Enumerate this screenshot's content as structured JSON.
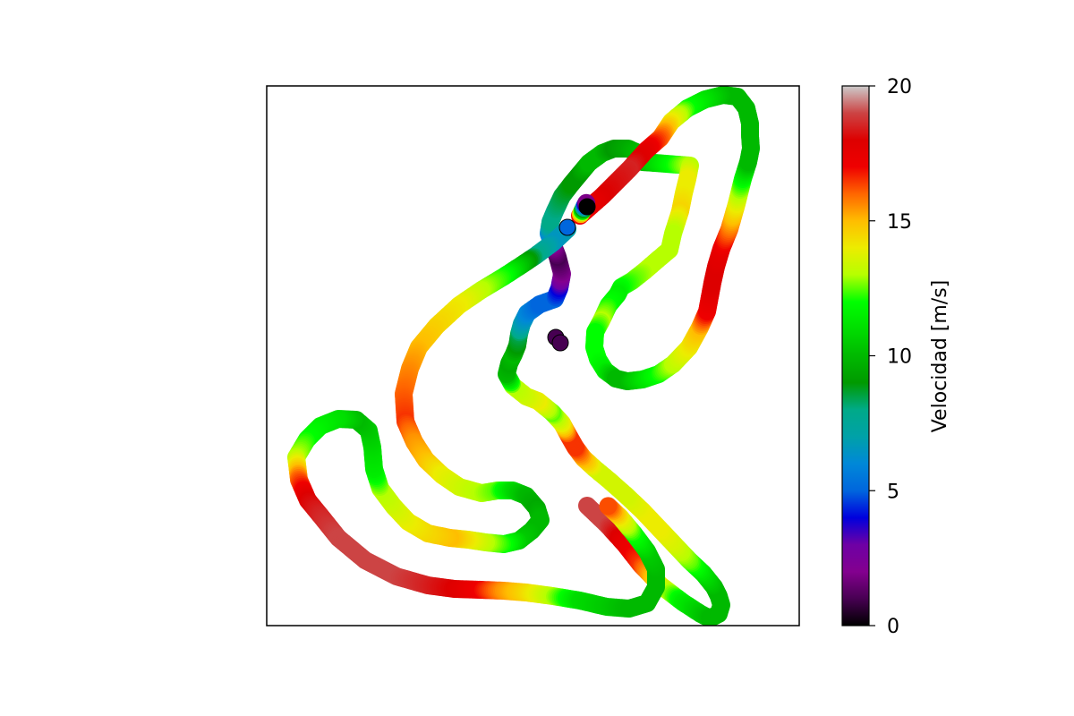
{
  "chart_data": {
    "type": "scatter",
    "title": "",
    "xlabel": "",
    "ylabel": "",
    "x_ticks_visible": false,
    "y_ticks_visible": false,
    "grid": false,
    "legend": "none",
    "colormap": "nipy_spectral",
    "colormap_stops": [
      {
        "v": 0.0,
        "c": "#000000"
      },
      {
        "v": 0.05,
        "c": "#470052"
      },
      {
        "v": 0.1,
        "c": "#83008f"
      },
      {
        "v": 0.15,
        "c": "#6e00a5"
      },
      {
        "v": 0.2,
        "c": "#0000dd"
      },
      {
        "v": 0.25,
        "c": "#0066dd"
      },
      {
        "v": 0.3,
        "c": "#0088d8"
      },
      {
        "v": 0.35,
        "c": "#00a1a8"
      },
      {
        "v": 0.4,
        "c": "#00aa88"
      },
      {
        "v": 0.45,
        "c": "#009a00"
      },
      {
        "v": 0.5,
        "c": "#00b900"
      },
      {
        "v": 0.55,
        "c": "#00dd00"
      },
      {
        "v": 0.6,
        "c": "#00ff00"
      },
      {
        "v": 0.65,
        "c": "#b6ff00"
      },
      {
        "v": 0.7,
        "c": "#ecec00"
      },
      {
        "v": 0.75,
        "c": "#ffbd00"
      },
      {
        "v": 0.8,
        "c": "#ff6600"
      },
      {
        "v": 0.85,
        "c": "#ef0000"
      },
      {
        "v": 0.9,
        "c": "#dd0000"
      },
      {
        "v": 0.95,
        "c": "#cc4444"
      },
      {
        "v": 1.0,
        "c": "#cccccc"
      }
    ],
    "colorbar": {
      "label": "Velocidad [m/s]",
      "range": [
        0,
        20
      ],
      "ticks": [
        "0",
        "5",
        "10",
        "15",
        "20"
      ]
    },
    "xlim": [
      0,
      595
    ],
    "ylim": [
      0,
      603
    ],
    "series": [
      {
        "points": [
          [
            358,
            469,
            19
          ],
          [
            380,
            490,
            19
          ],
          [
            400,
            512,
            17.5
          ],
          [
            418,
            535,
            16.5
          ],
          [
            440,
            558,
            14
          ],
          [
            465,
            577,
            11.5
          ],
          [
            485,
            590,
            10.5
          ],
          [
            495,
            595,
            10
          ],
          [
            505,
            590,
            10
          ],
          [
            508,
            580,
            10
          ],
          [
            505,
            570,
            10
          ],
          [
            500,
            560,
            10
          ],
          [
            488,
            545,
            11
          ],
          [
            472,
            530,
            12.5
          ],
          [
            455,
            512,
            13.5
          ],
          [
            438,
            494,
            14
          ],
          [
            420,
            475,
            14
          ],
          [
            402,
            458,
            13.5
          ],
          [
            384,
            442,
            13.5
          ],
          [
            366,
            427,
            13.5
          ],
          [
            354,
            416,
            15
          ],
          [
            345,
            404,
            16.5
          ],
          [
            337,
            390,
            16.5
          ],
          [
            330,
            377,
            14
          ],
          [
            319,
            365,
            12.5
          ],
          [
            303,
            352,
            14
          ],
          [
            290,
            347,
            13.5
          ],
          [
            275,
            335,
            13
          ],
          [
            268,
            322,
            10
          ],
          [
            271,
            310,
            9.5
          ],
          [
            276,
            300,
            10
          ],
          [
            280,
            290,
            9
          ],
          [
            282,
            277,
            8.5
          ],
          [
            285,
            266,
            7
          ],
          [
            291,
            254,
            6
          ],
          [
            305,
            244,
            5
          ],
          [
            322,
            238,
            5
          ],
          [
            327,
            226,
            4
          ],
          [
            330,
            210,
            2
          ],
          [
            325,
            191,
            1
          ],
          [
            320,
            178,
            2
          ],
          [
            315,
            165,
            6
          ],
          [
            317,
            152,
            8
          ],
          [
            322,
            140,
            8
          ],
          [
            330,
            123,
            8.5
          ],
          [
            340,
            110,
            9
          ],
          [
            350,
            98,
            9
          ],
          [
            360,
            86,
            10
          ],
          [
            375,
            75,
            10
          ],
          [
            388,
            70,
            9
          ],
          [
            404,
            70,
            9.5
          ],
          [
            415,
            75,
            10
          ],
          [
            420,
            85,
            10
          ],
          [
            473,
            89,
            13
          ],
          [
            470,
            104,
            14
          ],
          [
            466,
            120,
            14
          ],
          [
            462,
            140,
            14.5
          ],
          [
            454,
            165,
            13
          ],
          [
            450,
            183,
            13
          ],
          [
            437,
            194,
            13
          ],
          [
            422,
            207,
            13
          ],
          [
            408,
            218,
            12.5
          ],
          [
            396,
            225,
            12
          ],
          [
            392,
            233,
            11.5
          ],
          [
            382,
            245,
            12
          ],
          [
            374,
            262,
            13
          ],
          [
            367,
            275,
            12
          ],
          [
            366,
            292,
            12
          ],
          [
            370,
            305,
            12
          ],
          [
            378,
            318,
            11.5
          ],
          [
            390,
            327,
            10
          ],
          [
            403,
            330,
            10
          ],
          [
            420,
            328,
            11
          ],
          [
            438,
            322,
            12
          ],
          [
            454,
            311,
            13
          ],
          [
            472,
            292,
            14
          ],
          [
            484,
            270,
            15
          ],
          [
            492,
            252,
            17
          ],
          [
            495,
            236,
            17.5
          ],
          [
            498,
            220,
            18
          ],
          [
            502,
            202,
            18
          ],
          [
            508,
            182,
            17.5
          ],
          [
            517,
            160,
            16
          ],
          [
            525,
            132,
            14
          ],
          [
            532,
            104,
            12
          ],
          [
            538,
            85,
            10
          ],
          [
            541,
            70,
            10
          ],
          [
            540,
            55,
            10
          ],
          [
            540,
            42,
            10
          ],
          [
            536,
            25,
            10
          ],
          [
            526,
            12,
            10
          ],
          [
            510,
            10,
            10
          ],
          [
            490,
            15,
            11
          ],
          [
            470,
            25,
            12
          ],
          [
            452,
            40,
            14
          ],
          [
            440,
            58,
            16
          ],
          [
            424,
            72,
            17.5
          ],
          [
            405,
            93,
            18.5
          ],
          [
            375,
            123,
            18
          ],
          [
            350,
            145,
            17
          ],
          [
            358,
            129,
            0
          ]
        ]
      },
      {
        "points": [
          [
            336,
            160,
            7
          ],
          [
            320,
            175,
            6.5
          ],
          [
            300,
            190,
            8
          ],
          [
            285,
            200,
            10
          ],
          [
            265,
            213,
            12
          ],
          [
            240,
            228,
            13
          ],
          [
            215,
            245,
            14
          ],
          [
            190,
            268,
            14.5
          ],
          [
            170,
            292,
            15
          ],
          [
            160,
            316,
            15.5
          ],
          [
            153,
            344,
            16
          ],
          [
            155,
            375,
            16.5
          ],
          [
            165,
            398,
            15.5
          ],
          [
            178,
            418,
            15
          ],
          [
            196,
            435,
            14
          ],
          [
            215,
            448,
            13.5
          ],
          [
            240,
            455,
            13
          ],
          [
            258,
            452,
            12.5
          ],
          [
            275,
            452,
            11
          ],
          [
            290,
            458,
            10
          ],
          [
            302,
            472,
            9.5
          ],
          [
            306,
            485,
            10
          ],
          [
            296,
            497,
            10
          ],
          [
            282,
            508,
            10.5
          ],
          [
            265,
            512,
            12
          ],
          [
            245,
            510,
            13
          ],
          [
            225,
            507,
            14
          ],
          [
            205,
            505,
            15
          ],
          [
            180,
            500,
            14.5
          ],
          [
            158,
            487,
            14
          ],
          [
            142,
            470,
            13.5
          ],
          [
            127,
            450,
            13
          ],
          [
            120,
            428,
            11.5
          ],
          [
            118,
            404,
            11
          ],
          [
            114,
            385,
            10.5
          ],
          [
            100,
            373,
            10
          ],
          [
            80,
            372,
            11
          ],
          [
            60,
            380,
            11.5
          ],
          [
            45,
            395,
            12
          ],
          [
            33,
            415,
            13
          ],
          [
            36,
            440,
            16
          ],
          [
            46,
            463,
            18
          ],
          [
            60,
            480,
            18.5
          ],
          [
            80,
            505,
            19
          ],
          [
            110,
            530,
            19
          ],
          [
            145,
            548,
            19
          ],
          [
            180,
            558,
            18.5
          ],
          [
            210,
            562,
            18
          ],
          [
            240,
            563,
            17
          ],
          [
            265,
            564,
            15.5
          ],
          [
            290,
            566,
            14.5
          ],
          [
            320,
            570,
            13
          ],
          [
            350,
            575,
            11
          ],
          [
            380,
            582,
            10.5
          ],
          [
            405,
            584,
            10
          ],
          [
            425,
            578,
            10
          ],
          [
            435,
            560,
            10
          ],
          [
            435,
            540,
            10
          ],
          [
            425,
            520,
            10.5
          ],
          [
            410,
            500,
            12
          ],
          [
            395,
            482,
            14
          ],
          [
            380,
            468,
            16.5
          ]
        ]
      }
    ]
  }
}
